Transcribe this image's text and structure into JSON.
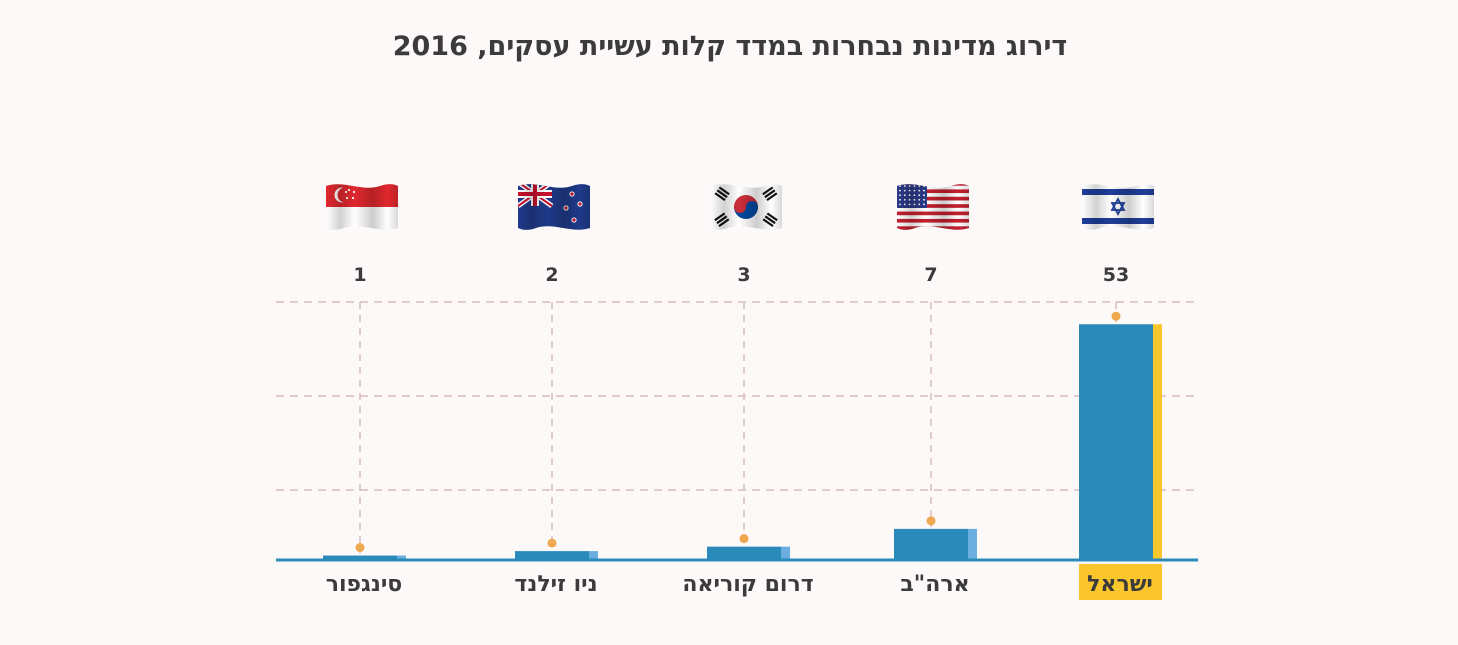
{
  "chart_data": {
    "type": "bar",
    "title": "דירוג מדינות נבחרות במדד קלות עשיית עסקים, 2016",
    "xlabel": "",
    "ylabel": "",
    "categories": [
      "ישראל",
      "ארה\"ב",
      "דרום קוריאה",
      "ניו זילנד",
      "סינגפור"
    ],
    "values": [
      53,
      7,
      3,
      2,
      1
    ],
    "ylim": [
      0,
      58
    ],
    "grid": true,
    "flags": [
      "israel-flag-icon",
      "usa-flag-icon",
      "south-korea-flag-icon",
      "new-zealand-flag-icon",
      "singapore-flag-icon"
    ],
    "highlight_index": 0
  },
  "colors": {
    "background": "#fdf9f8",
    "bar": "#2a8ab9",
    "bar_side": "#6aafe0",
    "highlight": "#fbc62b",
    "marker": "#f0a84e",
    "grid": "#d8bcbc",
    "baseline": "#2a8ab9",
    "text": "#3b3b3b"
  }
}
